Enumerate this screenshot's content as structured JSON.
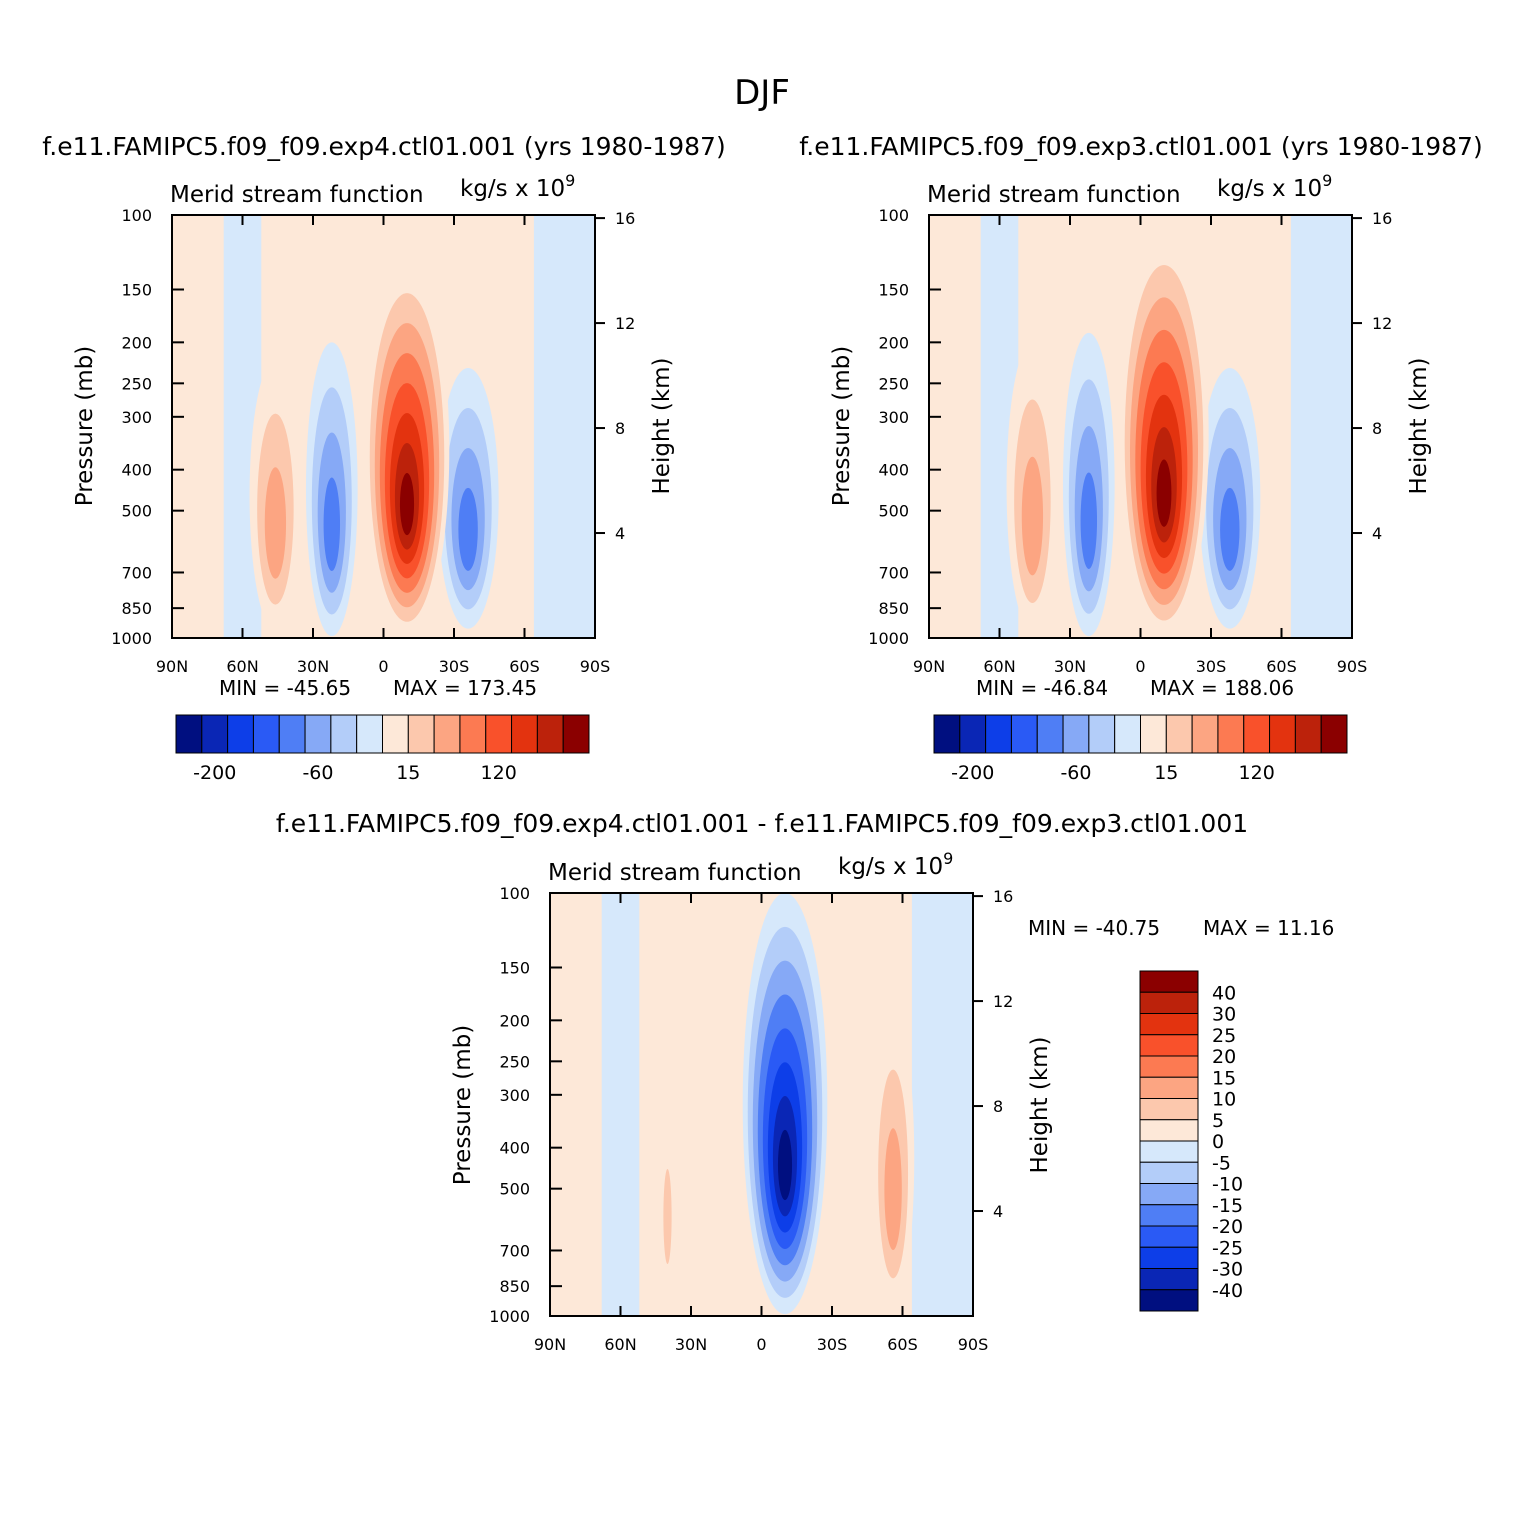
{
  "figure": {
    "title": "DJF",
    "colors": {
      "positive": [
        "#fde8d8",
        "#fcc8ad",
        "#fca582",
        "#fc7a52",
        "#f9512b",
        "#e3330f",
        "#bc220b",
        "#8b0000"
      ],
      "negative": [
        "#d6e8fb",
        "#b3cdf9",
        "#86a9f6",
        "#4f7ef5",
        "#2a5af5",
        "#0d3ee8",
        "#0a26b5",
        "#000f80"
      ]
    }
  },
  "chart_data": [
    {
      "type": "contour",
      "id": "top-left",
      "case_title": "f.e11.FAMIPC5.f09_f09.exp4.ctl01.001 (yrs 1980-1987)",
      "left_label": "Merid stream function",
      "units": "kg/s x 10",
      "units_exp": "9",
      "ylabel": "Pressure (mb)",
      "y2label": "Height (km)",
      "xticks": [
        "90N",
        "60N",
        "30N",
        "0",
        "30S",
        "60S",
        "90S"
      ],
      "yticks": [
        100,
        150,
        200,
        250,
        300,
        400,
        500,
        700,
        850,
        1000
      ],
      "y2ticks": [
        16,
        12,
        8,
        4
      ],
      "min_label": "MIN = -45.65",
      "max_label": "MAX = 173.45",
      "colorbar_labels": [
        "-200",
        "-60",
        "15",
        "120"
      ],
      "features": [
        {
          "sign": "neg",
          "lat": -36,
          "p_top": 230,
          "p_bot": 950,
          "width_deg": 26,
          "peak_level": 3
        },
        {
          "sign": "pos",
          "lat": -10,
          "p_top": 130,
          "p_bot": 990,
          "width_deg": 36,
          "peak_level": 7
        },
        {
          "sign": "neg",
          "lat": 22,
          "p_top": 200,
          "p_bot": 990,
          "width_deg": 22,
          "peak_level": 3
        },
        {
          "sign": "pos",
          "lat": 46,
          "p_top": 220,
          "p_bot": 960,
          "width_deg": 22,
          "peak_level": 2
        }
      ]
    },
    {
      "type": "contour",
      "id": "top-right",
      "case_title": "f.e11.FAMIPC5.f09_f09.exp3.ctl01.001 (yrs 1980-1987)",
      "left_label": "Merid stream function",
      "units": "kg/s x 10",
      "units_exp": "9",
      "ylabel": "Pressure (mb)",
      "y2label": "Height (km)",
      "xticks": [
        "90N",
        "60N",
        "30N",
        "0",
        "30S",
        "60S",
        "90S"
      ],
      "yticks": [
        100,
        150,
        200,
        250,
        300,
        400,
        500,
        700,
        850,
        1000
      ],
      "y2ticks": [
        16,
        12,
        8,
        4
      ],
      "min_label": "MIN = -46.84",
      "max_label": "MAX = 188.06",
      "colorbar_labels": [
        "-200",
        "-60",
        "15",
        "120"
      ],
      "features": [
        {
          "sign": "neg",
          "lat": -38,
          "p_top": 230,
          "p_bot": 950,
          "width_deg": 26,
          "peak_level": 3
        },
        {
          "sign": "pos",
          "lat": -10,
          "p_top": 110,
          "p_bot": 990,
          "width_deg": 38,
          "peak_level": 7
        },
        {
          "sign": "neg",
          "lat": 22,
          "p_top": 190,
          "p_bot": 990,
          "width_deg": 22,
          "peak_level": 3
        },
        {
          "sign": "pos",
          "lat": 46,
          "p_top": 200,
          "p_bot": 960,
          "width_deg": 22,
          "peak_level": 2
        }
      ]
    },
    {
      "type": "contour",
      "id": "difference",
      "case_title": "f.e11.FAMIPC5.f09_f09.exp4.ctl01.001 - f.e11.FAMIPC5.f09_f09.exp3.ctl01.001",
      "left_label": "Merid stream function",
      "units": "kg/s x 10",
      "units_exp": "9",
      "ylabel": "Pressure (mb)",
      "y2label": "Height (km)",
      "xticks": [
        "90N",
        "60N",
        "30N",
        "0",
        "30S",
        "60S",
        "90S"
      ],
      "yticks": [
        100,
        150,
        200,
        250,
        300,
        400,
        500,
        700,
        850,
        1000
      ],
      "y2ticks": [
        16,
        12,
        8,
        4
      ],
      "min_label": "MIN = -40.75",
      "max_label": "MAX =   11.16",
      "colorbar_labels": [
        "40",
        "30",
        "25",
        "20",
        "15",
        "10",
        "5",
        "0",
        "-5",
        "-10",
        "-15",
        "-20",
        "-25",
        "-30",
        "-40"
      ],
      "features": [
        {
          "sign": "pos",
          "lat": -56,
          "p_top": 190,
          "p_bot": 950,
          "width_deg": 18,
          "peak_level": 2
        },
        {
          "sign": "neg",
          "lat": -10,
          "p_top": 100,
          "p_bot": 990,
          "width_deg": 36,
          "peak_level": 7
        },
        {
          "sign": "pos",
          "lat": 40,
          "p_top": 350,
          "p_bot": 850,
          "width_deg": 6,
          "peak_level": 1
        }
      ]
    }
  ]
}
